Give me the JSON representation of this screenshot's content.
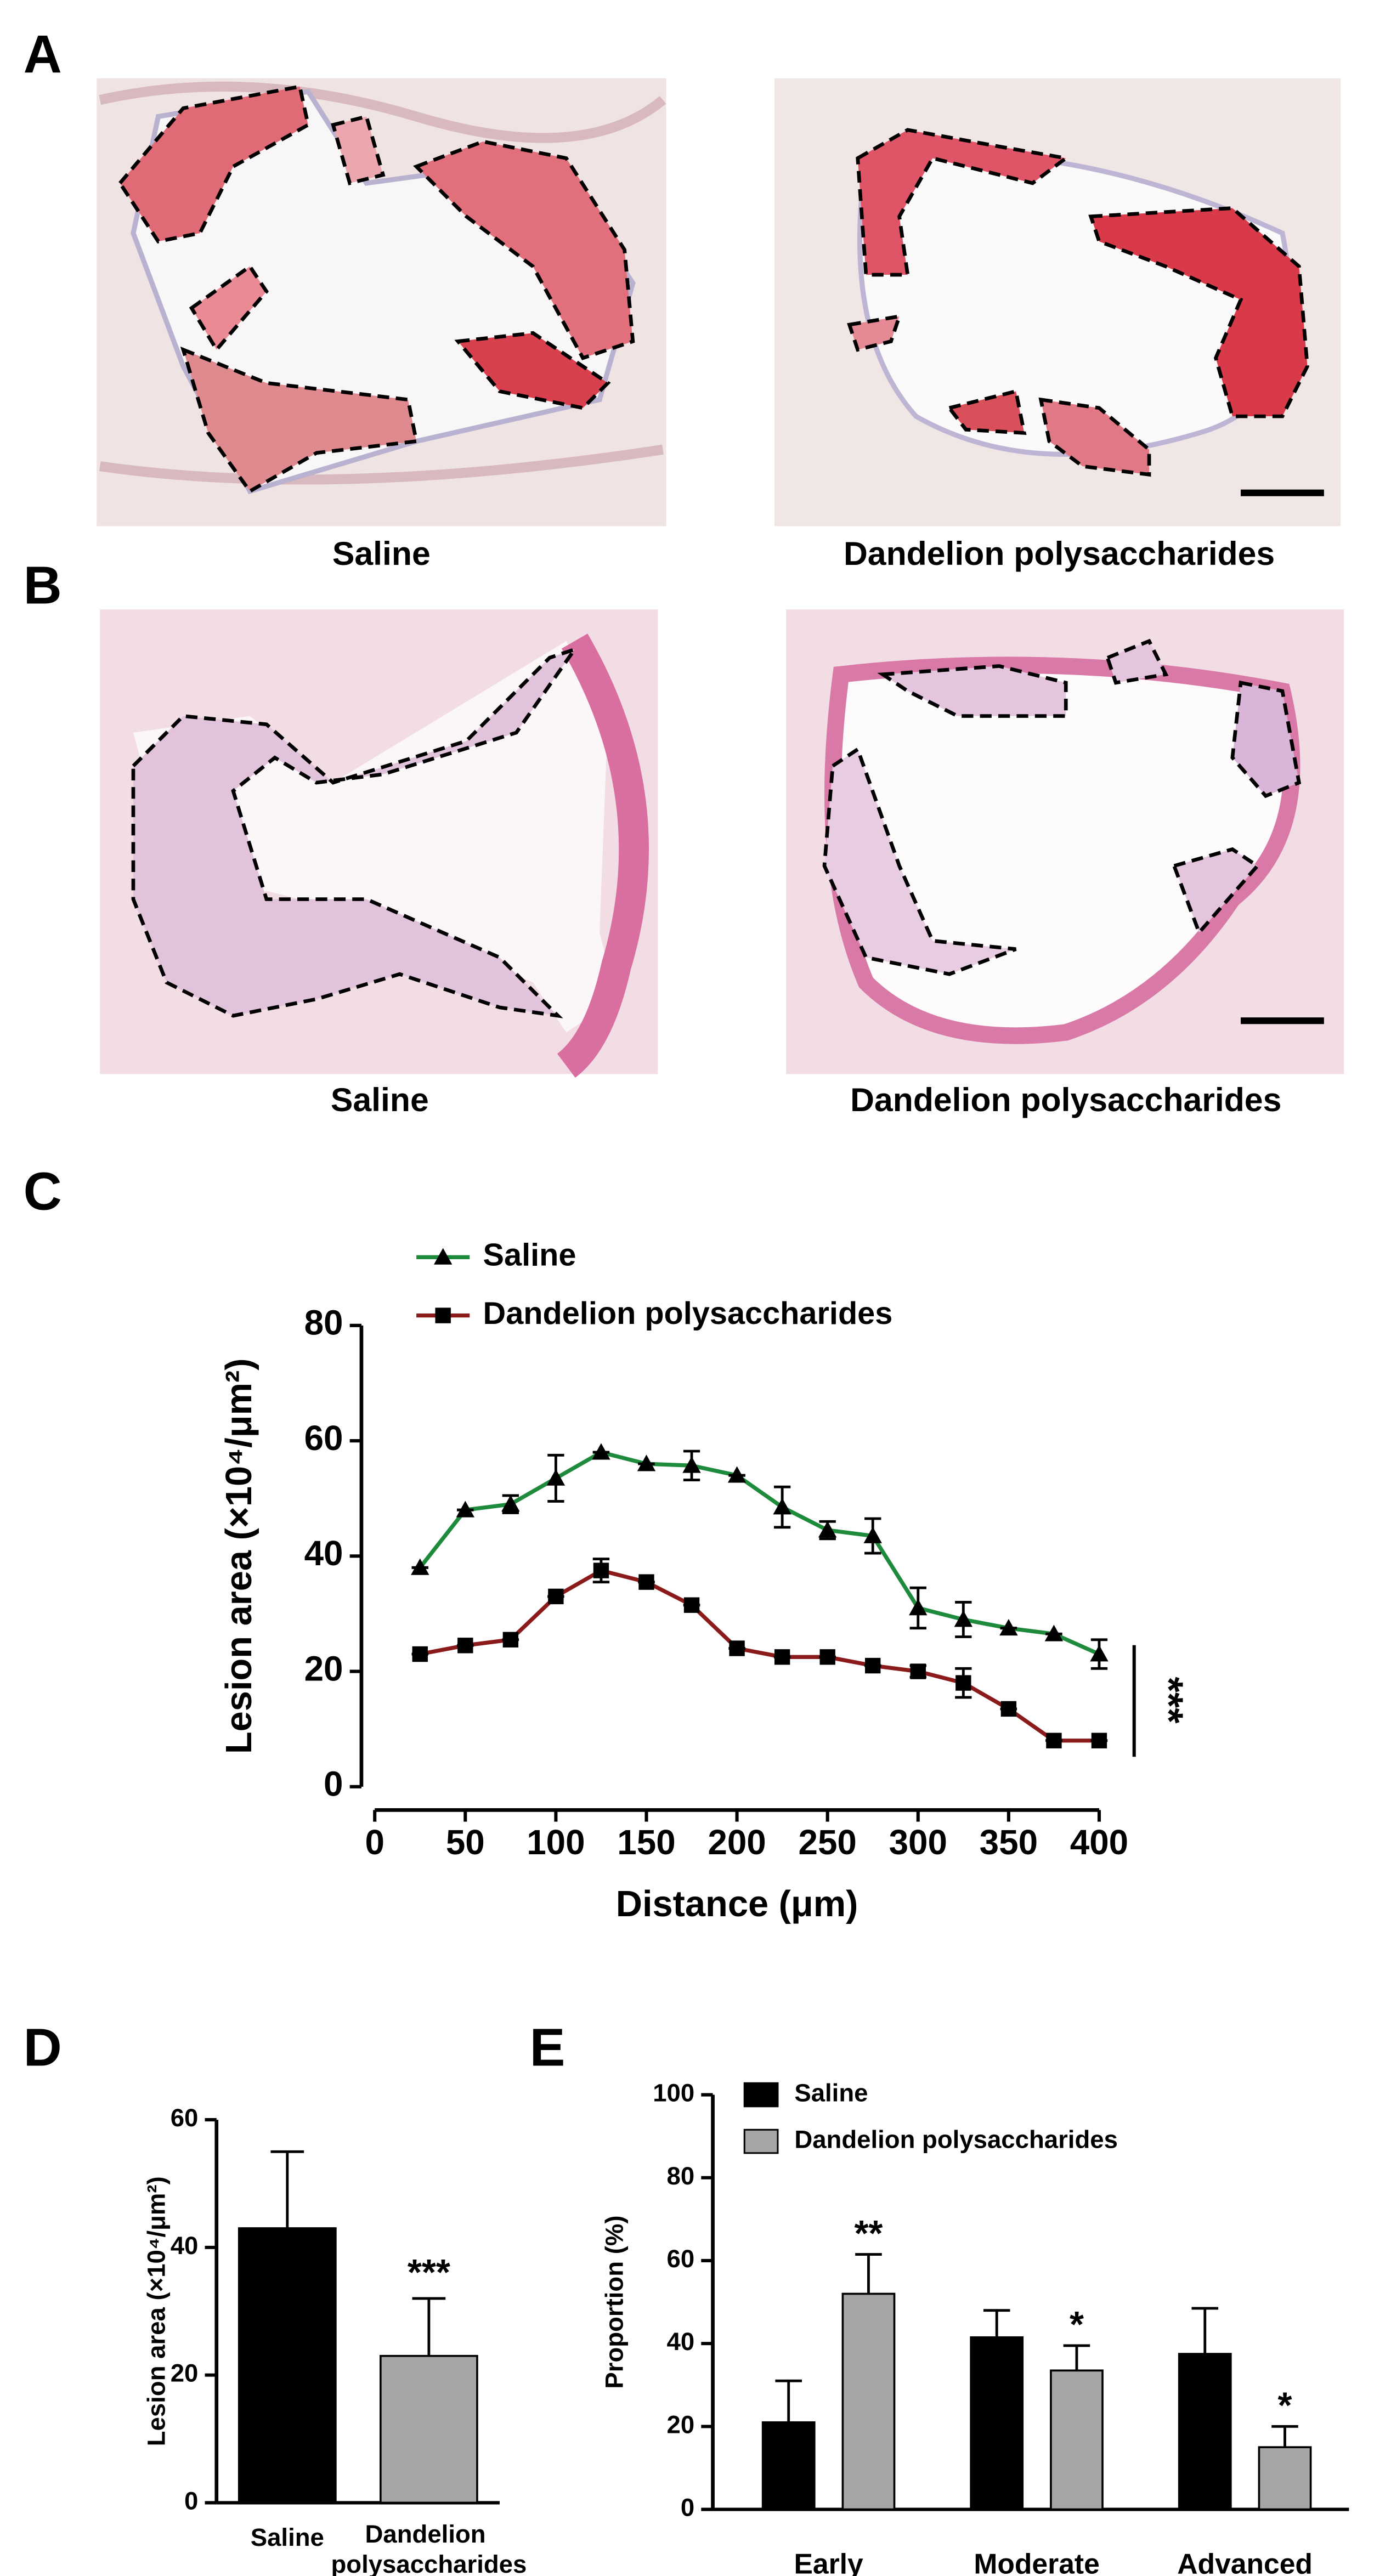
{
  "figure": {
    "panel_labels": [
      "A",
      "B",
      "C",
      "D",
      "E"
    ],
    "panel_a": {
      "captions": [
        "Saline",
        "Dandelion polysaccharides"
      ]
    },
    "panel_b": {
      "captions": [
        "Saline",
        "Dandelion polysaccharides"
      ]
    }
  },
  "chart_data": [
    {
      "type": "line",
      "x_label": "Distance (μm)",
      "y_label": "Lesion area (×10⁴/μm²)",
      "x": [
        25,
        50,
        75,
        100,
        125,
        150,
        175,
        200,
        225,
        250,
        275,
        300,
        325,
        350,
        375,
        400
      ],
      "xlim": [
        0,
        400
      ],
      "xticks": [
        0,
        50,
        100,
        150,
        200,
        250,
        300,
        350,
        400
      ],
      "ylim": [
        0,
        80
      ],
      "yticks": [
        0,
        20,
        40,
        60,
        80
      ],
      "legend": "upper left",
      "series": [
        {
          "name": "Saline",
          "color": "#1e8a3c",
          "marker": "triangle",
          "values": [
            38,
            48,
            49,
            53.5,
            58,
            56,
            55.7,
            54,
            48.5,
            44.5,
            43.5,
            31,
            29,
            27.5,
            26.5,
            23
          ],
          "errors": [
            0,
            0,
            1.5,
            4,
            0,
            0,
            2.5,
            0,
            3.5,
            1.5,
            3,
            3.5,
            3,
            0,
            0,
            2.5
          ]
        },
        {
          "name": "Dandelion polysaccharides",
          "color": "#8b1a1a",
          "marker": "square",
          "values": [
            23,
            24.5,
            25.5,
            33,
            37.5,
            35.5,
            31.5,
            24,
            22.5,
            22.5,
            21,
            20,
            18,
            13.5,
            8,
            8
          ],
          "errors": [
            0,
            0,
            0,
            0,
            2,
            0,
            0,
            0,
            0,
            0,
            0,
            1,
            2.5,
            0,
            0,
            0
          ]
        }
      ],
      "annotation": "***"
    },
    {
      "type": "bar",
      "y_label": "Lesion area (×10⁴/μm²)",
      "categories": [
        "Saline",
        "Dandelion polysaccharides"
      ],
      "values": [
        43,
        23
      ],
      "errors": [
        12,
        9
      ],
      "colors": [
        "#000000",
        "#a6a6a6"
      ],
      "significance": [
        null,
        "***"
      ],
      "ylim": [
        0,
        60
      ],
      "yticks": [
        0,
        20,
        40,
        60
      ]
    },
    {
      "type": "grouped_bar",
      "y_label": "Proportion (%)",
      "categories": [
        "Early",
        "Moderate",
        "Advanced"
      ],
      "ylim": [
        0,
        100
      ],
      "yticks": [
        0,
        20,
        40,
        60,
        80,
        100
      ],
      "legend": "upper left",
      "series": [
        {
          "name": "Saline",
          "color": "#000000",
          "values": [
            21,
            41.5,
            37.5
          ],
          "errors": [
            10,
            6.5,
            11
          ]
        },
        {
          "name": "Dandelion polysaccharides",
          "color": "#a6a6a6",
          "values": [
            52,
            33.5,
            15
          ],
          "errors": [
            9.5,
            6,
            5
          ],
          "significance": [
            "**",
            "*",
            "*"
          ]
        }
      ]
    }
  ]
}
